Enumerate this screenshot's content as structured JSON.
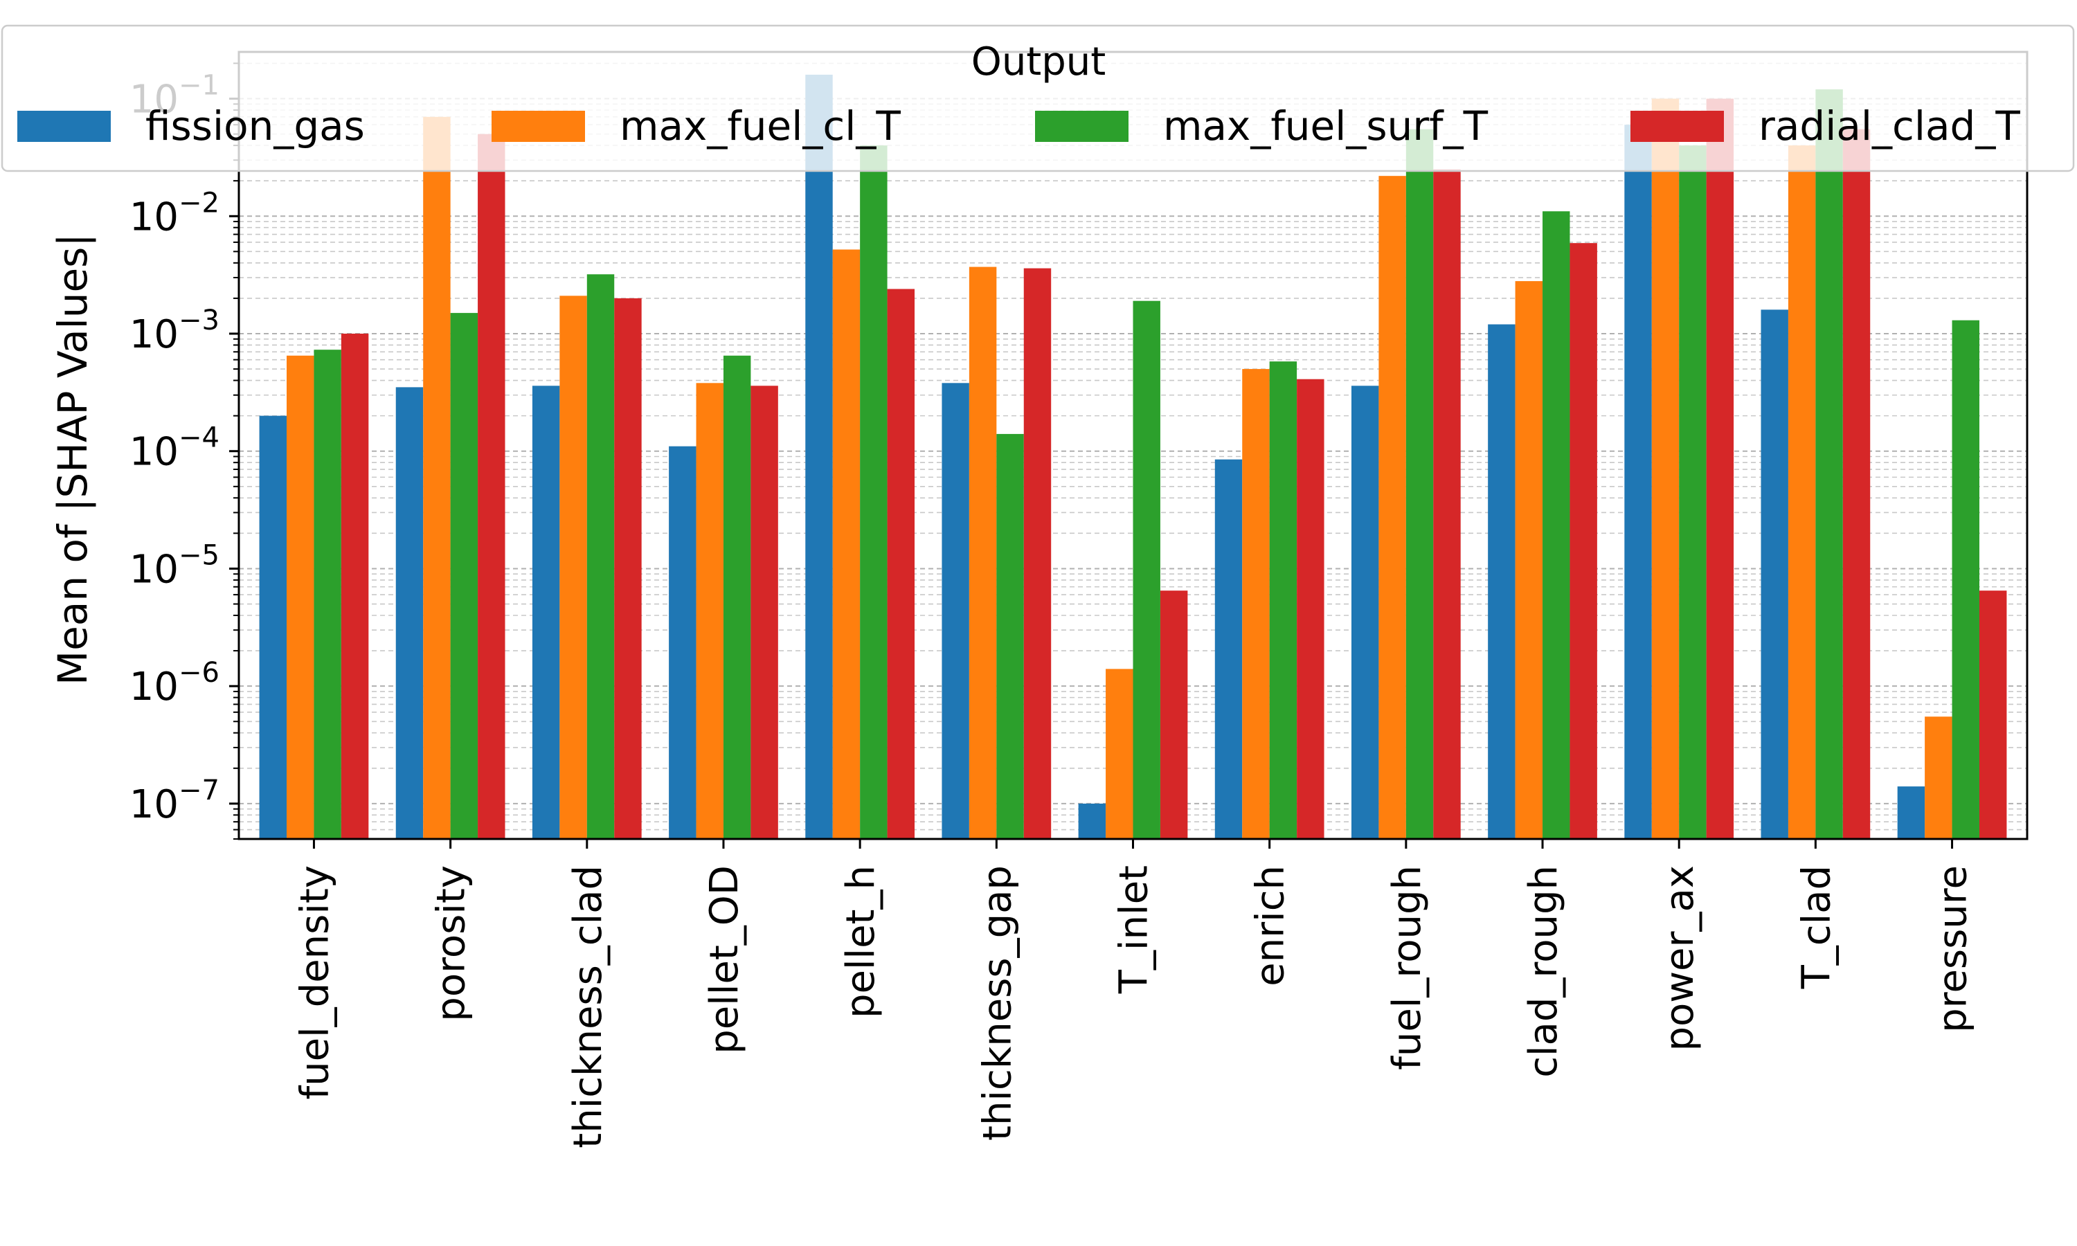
{
  "chart_data": {
    "type": "bar",
    "title": "",
    "xlabel": "",
    "ylabel": "Mean of |SHAP Values|",
    "yscale": "log",
    "ylim": [
      5e-08,
      0.25
    ],
    "grid": "y major and minor, dashed",
    "legend": {
      "title": "Output",
      "placement": "top",
      "columns": 4
    },
    "categories": [
      "fuel_density",
      "porosity",
      "thickness_clad",
      "pellet_OD",
      "pellet_h",
      "thickness_gap",
      "T_inlet",
      "enrich",
      "fuel_rough",
      "clad_rough",
      "power_ax",
      "T_clad",
      "pressure"
    ],
    "y_ticks": [
      {
        "value": 1e-07,
        "base": "10",
        "exp": "−7"
      },
      {
        "value": 1e-06,
        "base": "10",
        "exp": "−6"
      },
      {
        "value": 1e-05,
        "base": "10",
        "exp": "−5"
      },
      {
        "value": 0.0001,
        "base": "10",
        "exp": "−4"
      },
      {
        "value": 0.001,
        "base": "10",
        "exp": "−3"
      },
      {
        "value": 0.01,
        "base": "10",
        "exp": "−2"
      },
      {
        "value": 0.1,
        "base": "10",
        "exp": "−1"
      }
    ],
    "series": [
      {
        "name": "fission_gas",
        "color": "#1f77b4",
        "values": [
          0.0002,
          0.00035,
          0.00036,
          0.00011,
          0.16,
          0.00038,
          1e-07,
          8.5e-05,
          0.00036,
          0.0012,
          0.06,
          0.0016,
          1.4e-07
        ]
      },
      {
        "name": "max_fuel_cl_T",
        "color": "#ff7f0e",
        "values": [
          0.00065,
          0.07,
          0.0021,
          0.00038,
          0.0052,
          0.0037,
          1.4e-06,
          0.0005,
          0.022,
          0.0028,
          0.1,
          0.04,
          5.5e-07
        ]
      },
      {
        "name": "max_fuel_surf_T",
        "color": "#2ca02c",
        "values": [
          0.00073,
          0.0015,
          0.0032,
          0.00065,
          0.04,
          0.00014,
          0.0019,
          0.00058,
          0.055,
          0.011,
          0.04,
          0.12,
          0.0013
        ]
      },
      {
        "name": "radial_clad_T",
        "color": "#d62728",
        "values": [
          0.001,
          0.05,
          0.002,
          0.00036,
          0.0024,
          0.0036,
          6.5e-06,
          0.00041,
          0.025,
          0.0059,
          0.1,
          0.055,
          6.5e-06
        ]
      }
    ]
  }
}
